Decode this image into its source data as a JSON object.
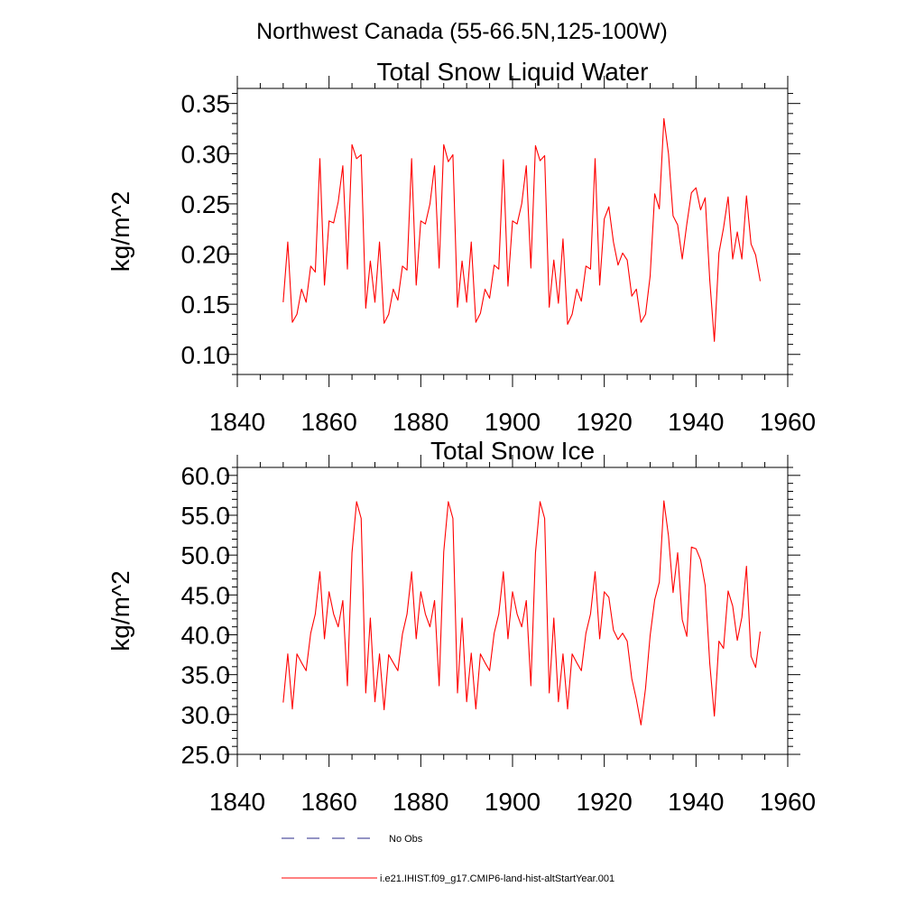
{
  "figure": {
    "title": "Northwest Canada (55-66.5N,125-100W)"
  },
  "legend": {
    "items": [
      {
        "label": "No Obs",
        "color": "#2a2a8a",
        "dash": "dashed"
      },
      {
        "label": "i.e21.IHIST.f09_g17.CMIP6-land-hist-altStartYear.001",
        "color": "#ff0000",
        "dash": "solid"
      }
    ]
  },
  "chart_data": [
    {
      "type": "line",
      "title": "Total Snow Liquid Water",
      "xlabel": "",
      "ylabel": "kg/m^2",
      "xlim": [
        1840,
        1960
      ],
      "ylim": [
        0.08,
        0.365
      ],
      "xticks": [
        1840,
        1860,
        1880,
        1900,
        1920,
        1940,
        1960
      ],
      "xtick_labels": [
        "1840",
        "1860",
        "1880",
        "1900",
        "1920",
        "1940",
        "1960"
      ],
      "yticks": [
        0.1,
        0.15,
        0.2,
        0.25,
        0.3,
        0.35
      ],
      "ytick_labels": [
        "0.10",
        "0.15",
        "0.20",
        "0.25",
        "0.30",
        "0.35"
      ],
      "grid": false,
      "series": [
        {
          "name": "i.e21.IHIST.f09_g17.CMIP6-land-hist-altStartYear.001",
          "color": "#ff0000",
          "x": [
            1850,
            1851,
            1852,
            1853,
            1854,
            1855,
            1856,
            1857,
            1858,
            1859,
            1860,
            1861,
            1862,
            1863,
            1864,
            1865,
            1866,
            1867,
            1868,
            1869,
            1870,
            1871,
            1872,
            1873,
            1874,
            1875,
            1876,
            1877,
            1878,
            1879,
            1880,
            1881,
            1882,
            1883,
            1884,
            1885,
            1886,
            1887,
            1888,
            1889,
            1890,
            1891,
            1892,
            1893,
            1894,
            1895,
            1896,
            1897,
            1898,
            1899,
            1900,
            1901,
            1902,
            1903,
            1904,
            1905,
            1906,
            1907,
            1908,
            1909,
            1910,
            1911,
            1912,
            1913,
            1914,
            1915,
            1916,
            1917,
            1918,
            1919,
            1920,
            1921,
            1922,
            1923,
            1924,
            1925,
            1926,
            1927,
            1928,
            1929,
            1930,
            1931,
            1932,
            1933,
            1934,
            1935,
            1936,
            1937,
            1938,
            1939,
            1940,
            1941,
            1942,
            1943,
            1944,
            1945,
            1946,
            1947,
            1948,
            1949,
            1950,
            1951,
            1952,
            1953,
            1954
          ],
          "values": [
            0.152,
            0.212,
            0.132,
            0.14,
            0.165,
            0.152,
            0.188,
            0.182,
            0.295,
            0.169,
            0.233,
            0.231,
            0.252,
            0.288,
            0.185,
            0.309,
            0.295,
            0.299,
            0.146,
            0.193,
            0.152,
            0.212,
            0.131,
            0.14,
            0.165,
            0.154,
            0.188,
            0.184,
            0.295,
            0.169,
            0.233,
            0.23,
            0.25,
            0.288,
            0.186,
            0.309,
            0.292,
            0.299,
            0.147,
            0.193,
            0.152,
            0.212,
            0.132,
            0.141,
            0.165,
            0.156,
            0.189,
            0.185,
            0.294,
            0.168,
            0.233,
            0.23,
            0.25,
            0.288,
            0.186,
            0.308,
            0.293,
            0.298,
            0.147,
            0.194,
            0.151,
            0.215,
            0.13,
            0.14,
            0.165,
            0.153,
            0.188,
            0.185,
            0.295,
            0.169,
            0.235,
            0.247,
            0.212,
            0.189,
            0.201,
            0.194,
            0.158,
            0.165,
            0.132,
            0.14,
            0.178,
            0.26,
            0.245,
            0.335,
            0.3,
            0.238,
            0.229,
            0.195,
            0.23,
            0.261,
            0.266,
            0.244,
            0.256,
            0.174,
            0.113,
            0.201,
            0.226,
            0.257,
            0.195,
            0.222,
            0.195,
            0.258,
            0.21,
            0.199,
            0.173
          ]
        }
      ]
    },
    {
      "type": "line",
      "title": "Total Snow Ice",
      "xlabel": "",
      "ylabel": "kg/m^2",
      "xlim": [
        1840,
        1960
      ],
      "ylim": [
        25.0,
        61.0
      ],
      "xticks": [
        1840,
        1860,
        1880,
        1900,
        1920,
        1940,
        1960
      ],
      "xtick_labels": [
        "1840",
        "1860",
        "1880",
        "1900",
        "1920",
        "1940",
        "1960"
      ],
      "yticks": [
        25.0,
        30.0,
        35.0,
        40.0,
        45.0,
        50.0,
        55.0,
        60.0
      ],
      "ytick_labels": [
        "25.0",
        "30.0",
        "35.0",
        "40.0",
        "45.0",
        "50.0",
        "55.0",
        "60.0"
      ],
      "grid": false,
      "series": [
        {
          "name": "i.e21.IHIST.f09_g17.CMIP6-land-hist-altStartYear.001",
          "color": "#ff0000",
          "x": [
            1850,
            1851,
            1852,
            1853,
            1854,
            1855,
            1856,
            1857,
            1858,
            1859,
            1860,
            1861,
            1862,
            1863,
            1864,
            1865,
            1866,
            1867,
            1868,
            1869,
            1870,
            1871,
            1872,
            1873,
            1874,
            1875,
            1876,
            1877,
            1878,
            1879,
            1880,
            1881,
            1882,
            1883,
            1884,
            1885,
            1886,
            1887,
            1888,
            1889,
            1890,
            1891,
            1892,
            1893,
            1894,
            1895,
            1896,
            1897,
            1898,
            1899,
            1900,
            1901,
            1902,
            1903,
            1904,
            1905,
            1906,
            1907,
            1908,
            1909,
            1910,
            1911,
            1912,
            1913,
            1914,
            1915,
            1916,
            1917,
            1918,
            1919,
            1920,
            1921,
            1922,
            1923,
            1924,
            1925,
            1926,
            1927,
            1928,
            1929,
            1930,
            1931,
            1932,
            1933,
            1934,
            1935,
            1936,
            1937,
            1938,
            1939,
            1940,
            1941,
            1942,
            1943,
            1944,
            1945,
            1946,
            1947,
            1948,
            1949,
            1950,
            1951,
            1952,
            1953,
            1954
          ],
          "values": [
            31.5,
            37.6,
            30.7,
            37.6,
            36.5,
            35.5,
            40.2,
            42.6,
            47.9,
            39.5,
            45.4,
            42.6,
            41.0,
            44.3,
            33.6,
            50.3,
            56.7,
            54.6,
            32.7,
            42.1,
            31.6,
            37.6,
            30.6,
            37.5,
            36.5,
            35.5,
            40.1,
            42.6,
            47.9,
            39.5,
            45.4,
            42.6,
            41.0,
            44.3,
            33.6,
            50.4,
            56.7,
            54.6,
            32.7,
            42.1,
            31.6,
            37.7,
            30.7,
            37.6,
            36.5,
            35.5,
            40.2,
            42.6,
            47.9,
            39.5,
            45.4,
            42.6,
            41.0,
            44.3,
            33.6,
            50.3,
            56.7,
            54.6,
            32.7,
            42.1,
            31.6,
            37.6,
            30.7,
            37.6,
            36.5,
            35.5,
            40.2,
            42.6,
            47.9,
            39.5,
            45.4,
            44.7,
            40.6,
            39.4,
            40.2,
            39.2,
            34.5,
            31.9,
            28.7,
            33.3,
            39.9,
            44.4,
            46.6,
            56.8,
            52.4,
            45.3,
            50.3,
            41.9,
            39.8,
            51.0,
            50.8,
            49.4,
            46.2,
            36.4,
            29.8,
            39.2,
            38.3,
            45.5,
            43.6,
            39.3,
            42.2,
            48.6,
            37.3,
            35.9,
            40.4
          ]
        }
      ]
    }
  ]
}
